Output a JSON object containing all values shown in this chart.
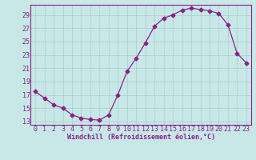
{
  "x": [
    0,
    1,
    2,
    3,
    4,
    5,
    6,
    7,
    8,
    9,
    10,
    11,
    12,
    13,
    14,
    15,
    16,
    17,
    18,
    19,
    20,
    21,
    22,
    23
  ],
  "y": [
    17.5,
    16.5,
    15.5,
    15.0,
    14.0,
    13.5,
    13.3,
    13.2,
    14.0,
    17.0,
    20.5,
    22.5,
    24.8,
    27.3,
    28.5,
    29.0,
    29.7,
    30.0,
    29.8,
    29.6,
    29.2,
    27.5,
    23.2,
    21.8
  ],
  "line_color": "#882288",
  "marker": "D",
  "marker_size": 2.5,
  "bg_color": "#c8e8e8",
  "plot_bg_color": "#c8e8e8",
  "grid_color": "#aacccc",
  "xlabel": "Windchill (Refroidissement éolien,°C)",
  "yticks": [
    13,
    15,
    17,
    19,
    21,
    23,
    25,
    27,
    29
  ],
  "ylim": [
    12.5,
    30.5
  ],
  "xlim": [
    -0.5,
    23.5
  ],
  "tick_color": "#882288",
  "label_color": "#882288",
  "font_size": 6.0,
  "spine_color": "#882288"
}
